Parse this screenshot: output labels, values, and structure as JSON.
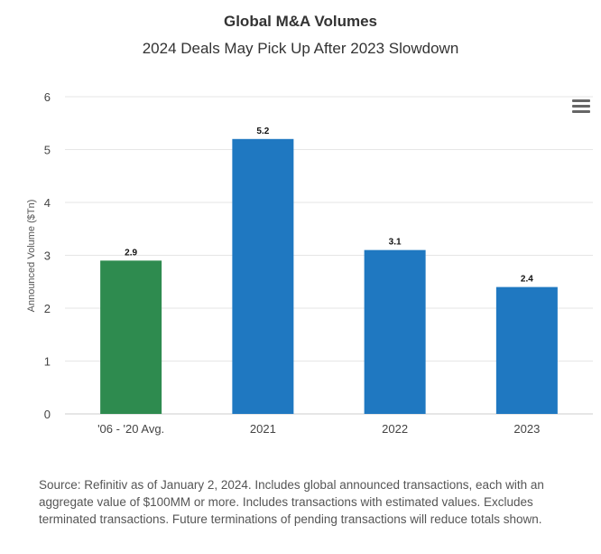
{
  "chart_data": {
    "type": "bar",
    "title": "Global M&A Volumes",
    "subtitle": "2024 Deals May Pick Up After 2023 Slowdown",
    "xlabel": "",
    "ylabel": "Announced Volume ($Tn)",
    "ylim": [
      0,
      6
    ],
    "yticks": [
      0,
      1,
      2,
      3,
      4,
      5,
      6
    ],
    "grid": true,
    "categories": [
      "'06 - '20 Avg.",
      "2021",
      "2022",
      "2023"
    ],
    "values": [
      2.9,
      5.2,
      3.1,
      2.4
    ],
    "data_labels": [
      "2.9",
      "5.2",
      "3.1",
      "2.4"
    ],
    "colors": [
      "#2e8b4f",
      "#1f78c1",
      "#1f78c1",
      "#1f78c1"
    ]
  },
  "source_note": "Source: Refinitiv as of January 2, 2024. Includes global announced transactions, each with an aggregate value of $100MM or more. Includes transactions with estimated values. Excludes terminated transactions. Future terminations of pending transactions will reduce totals shown.",
  "menu": {
    "icon": "hamburger-menu-icon"
  }
}
